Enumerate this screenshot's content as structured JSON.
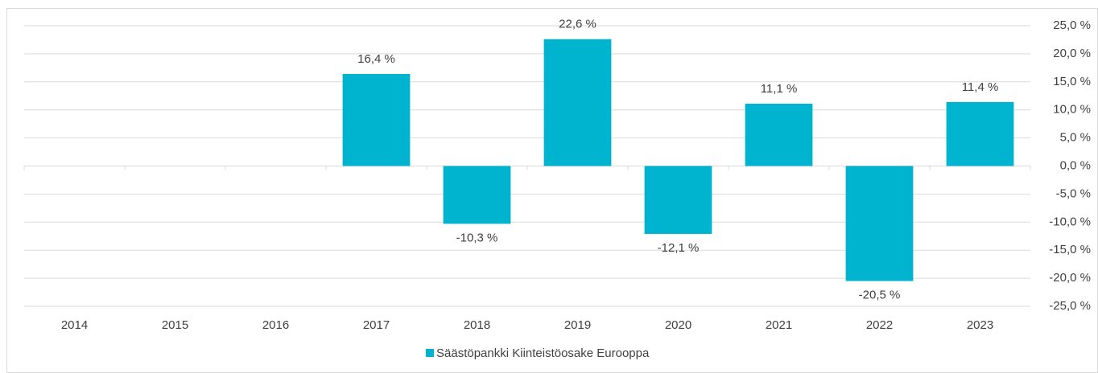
{
  "chart_data": {
    "type": "bar",
    "categories": [
      "2014",
      "2015",
      "2016",
      "2017",
      "2018",
      "2019",
      "2020",
      "2021",
      "2022",
      "2023"
    ],
    "series": [
      {
        "name": "Säästöpankki Kiinteistöosake Eurooppa",
        "color": "#00b4cf",
        "values": [
          null,
          null,
          null,
          16.4,
          -10.3,
          22.6,
          -12.1,
          11.1,
          -20.5,
          11.4
        ],
        "value_labels": [
          null,
          null,
          null,
          "16,4 %",
          "-10,3 %",
          "22,6 %",
          "-12,1 %",
          "11,1 %",
          "-20,5 %",
          "11,4 %"
        ]
      }
    ],
    "ylim": [
      -25,
      25
    ],
    "yticks": [
      {
        "value": 25,
        "label": "25,0 %"
      },
      {
        "value": 20,
        "label": "20,0 %"
      },
      {
        "value": 15,
        "label": "15,0 %"
      },
      {
        "value": 10,
        "label": "10,0 %"
      },
      {
        "value": 5,
        "label": "5,0 %"
      },
      {
        "value": 0,
        "label": "0,0 %"
      },
      {
        "value": -5,
        "label": "-5,0 %"
      },
      {
        "value": -10,
        "label": "-10,0 %"
      },
      {
        "value": -15,
        "label": "-15,0 %"
      },
      {
        "value": -20,
        "label": "-20,0 %"
      },
      {
        "value": -25,
        "label": "-25,0 %"
      }
    ],
    "y_axis_side": "right",
    "grid": true,
    "legend": "bottom"
  }
}
